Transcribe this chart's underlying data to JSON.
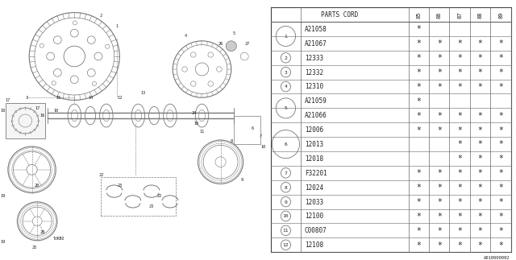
{
  "diagram_id": "A010000092",
  "bg_color": "#ffffff",
  "line_color": "#777777",
  "text_color": "#222222",
  "table": {
    "col_years": [
      "85",
      "86",
      "87",
      "88",
      "89"
    ],
    "groups": [
      {
        "num": "1",
        "codes": [
          "A21058",
          "A21067"
        ],
        "marks": [
          [
            true,
            false,
            false,
            false,
            false
          ],
          [
            true,
            true,
            true,
            true,
            true
          ]
        ]
      },
      {
        "num": "2",
        "codes": [
          "12333"
        ],
        "marks": [
          [
            true,
            true,
            true,
            true,
            true
          ]
        ]
      },
      {
        "num": "3",
        "codes": [
          "12332"
        ],
        "marks": [
          [
            true,
            true,
            true,
            true,
            true
          ]
        ]
      },
      {
        "num": "4",
        "codes": [
          "12310"
        ],
        "marks": [
          [
            true,
            true,
            true,
            true,
            true
          ]
        ]
      },
      {
        "num": "5",
        "codes": [
          "A21059",
          "A21066"
        ],
        "marks": [
          [
            true,
            false,
            false,
            false,
            false
          ],
          [
            true,
            true,
            true,
            true,
            true
          ]
        ]
      },
      {
        "num": "6",
        "codes": [
          "12006",
          "12013",
          "12018"
        ],
        "marks": [
          [
            true,
            true,
            true,
            true,
            true
          ],
          [
            false,
            false,
            true,
            true,
            true
          ],
          [
            false,
            false,
            true,
            true,
            true
          ]
        ]
      },
      {
        "num": "7",
        "codes": [
          "F32201"
        ],
        "marks": [
          [
            true,
            true,
            true,
            true,
            true
          ]
        ]
      },
      {
        "num": "8",
        "codes": [
          "12024"
        ],
        "marks": [
          [
            true,
            true,
            true,
            true,
            true
          ]
        ]
      },
      {
        "num": "9",
        "codes": [
          "12033"
        ],
        "marks": [
          [
            true,
            true,
            true,
            true,
            true
          ]
        ]
      },
      {
        "num": "10",
        "codes": [
          "12100"
        ],
        "marks": [
          [
            true,
            true,
            true,
            true,
            true
          ]
        ]
      },
      {
        "num": "11",
        "codes": [
          "C00807"
        ],
        "marks": [
          [
            true,
            true,
            true,
            true,
            true
          ]
        ]
      },
      {
        "num": "12",
        "codes": [
          "12108"
        ],
        "marks": [
          [
            true,
            true,
            true,
            true,
            true
          ]
        ]
      }
    ]
  }
}
